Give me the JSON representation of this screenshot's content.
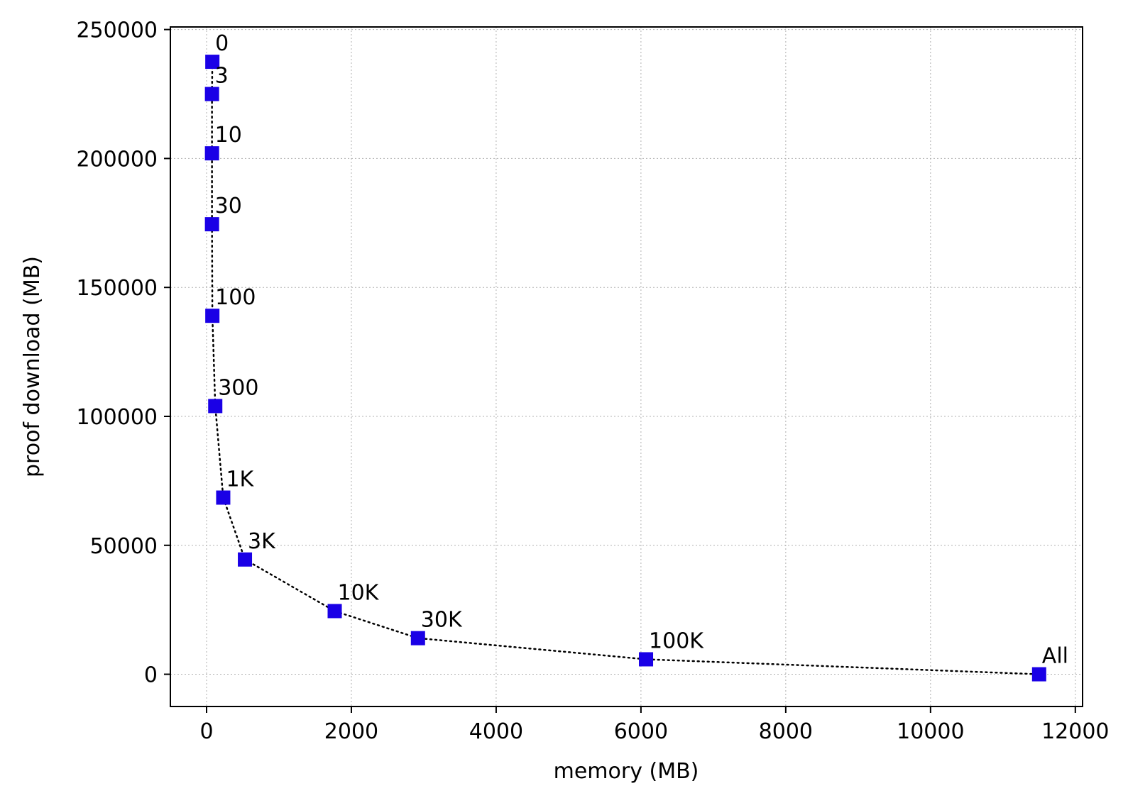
{
  "chart_data": {
    "type": "scatter",
    "title": "",
    "xlabel": "memory (MB)",
    "ylabel": "proof download (MB)",
    "xlim": [
      -500,
      12100
    ],
    "ylim": [
      -12500,
      251000
    ],
    "x_ticks": [
      0,
      2000,
      4000,
      6000,
      8000,
      10000,
      12000
    ],
    "y_ticks": [
      0,
      50000,
      100000,
      150000,
      200000,
      250000
    ],
    "grid": true,
    "marker": "square",
    "line_style": "dotted",
    "marker_color": "#1a00e6",
    "line_color": "#000000",
    "points": [
      {
        "label": "0",
        "x": 80,
        "y": 237500
      },
      {
        "label": "3",
        "x": 75,
        "y": 225000
      },
      {
        "label": "10",
        "x": 75,
        "y": 202000
      },
      {
        "label": "30",
        "x": 75,
        "y": 174500
      },
      {
        "label": "100",
        "x": 80,
        "y": 139000
      },
      {
        "label": "300",
        "x": 120,
        "y": 104000
      },
      {
        "label": "1K",
        "x": 230,
        "y": 68500
      },
      {
        "label": "3K",
        "x": 530,
        "y": 44500
      },
      {
        "label": "10K",
        "x": 1770,
        "y": 24500
      },
      {
        "label": "30K",
        "x": 2920,
        "y": 14000
      },
      {
        "label": "100K",
        "x": 6070,
        "y": 5800
      },
      {
        "label": "All",
        "x": 11500,
        "y": 0
      }
    ]
  }
}
